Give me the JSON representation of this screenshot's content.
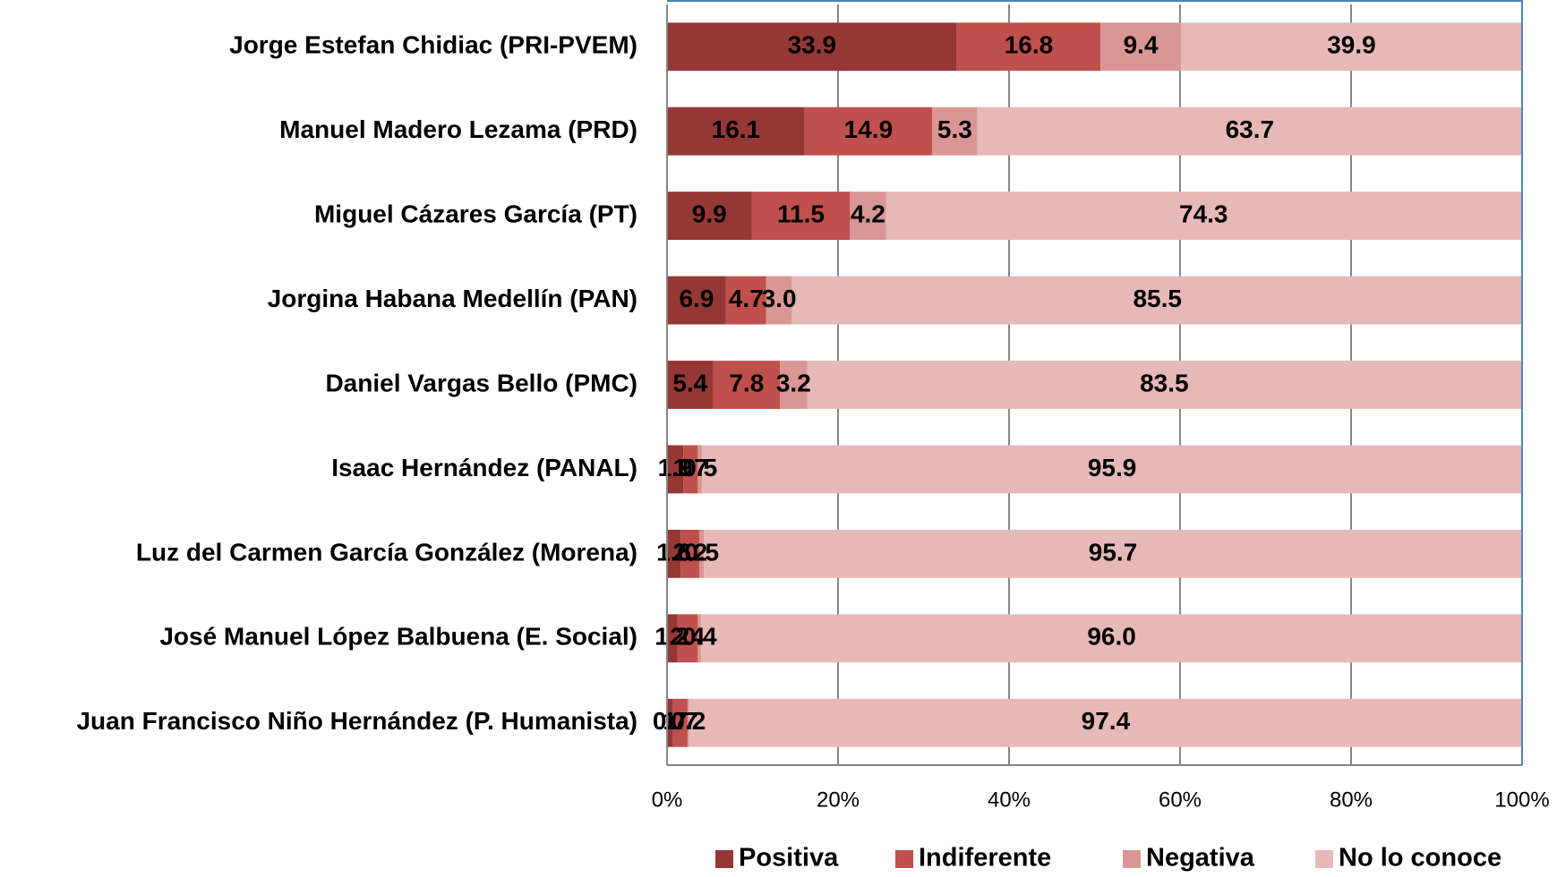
{
  "chart_data": {
    "type": "stacked_hbar",
    "categories": [
      "Jorge Estefan Chidiac (PRI-PVEM)",
      "Manuel Madero Lezama (PRD)",
      "Miguel Cázares García (PT)",
      "Jorgina Habana Medellín (PAN)",
      "Daniel Vargas Bello (PMC)",
      "Isaac Hernández (PANAL)",
      "Luz del Carmen García González (Morena)",
      "José Manuel López Balbuena (E. Social)",
      "Juan Francisco Niño Hernández (P. Humanista)"
    ],
    "series": [
      {
        "name": "Positiva",
        "color": "#953735",
        "values": [
          33.9,
          16.1,
          9.9,
          6.9,
          5.4,
          1.9,
          1.6,
          1.2,
          0.7
        ],
        "value_labels": [
          "33.9",
          "16.1",
          "9.9",
          "6.9",
          "5.4",
          "1.9",
          "1.6",
          "1.2",
          "0.7"
        ]
      },
      {
        "name": "Indiferente",
        "color": "#c0504d",
        "values": [
          16.8,
          14.9,
          11.5,
          4.7,
          7.8,
          1.7,
          2.2,
          2.4,
          1.7
        ],
        "value_labels": [
          "16.8",
          "14.9",
          "11.5",
          "4.7",
          "7.8",
          "1.7",
          "2.2",
          "2.4",
          "1.7"
        ]
      },
      {
        "name": "Negativa",
        "color": "#d99694",
        "values": [
          9.4,
          5.3,
          4.2,
          3.0,
          3.2,
          0.5,
          0.5,
          0.4,
          0.2
        ],
        "value_labels": [
          "9.4",
          "5.3",
          "4.2",
          "3.0",
          "3.2",
          "0.5",
          "0.5",
          "0.4",
          "0.2"
        ]
      },
      {
        "name": "No lo conoce",
        "color": "#e6b9b8",
        "values": [
          39.9,
          63.7,
          74.3,
          85.5,
          83.5,
          95.9,
          95.7,
          96.0,
          97.4
        ],
        "value_labels": [
          "39.9",
          "63.7",
          "74.3",
          "85.5",
          "83.5",
          "95.9",
          "95.7",
          "96.0",
          "97.4"
        ]
      }
    ],
    "xlim": [
      0,
      100
    ],
    "xticks": [
      {
        "value": 0,
        "label": "0%"
      },
      {
        "value": 20,
        "label": "20%"
      },
      {
        "value": 40,
        "label": "40%"
      },
      {
        "value": 60,
        "label": "60%"
      },
      {
        "value": 80,
        "label": "80%"
      },
      {
        "value": 100,
        "label": "100%"
      }
    ],
    "grid": true,
    "legend": "bottom"
  }
}
